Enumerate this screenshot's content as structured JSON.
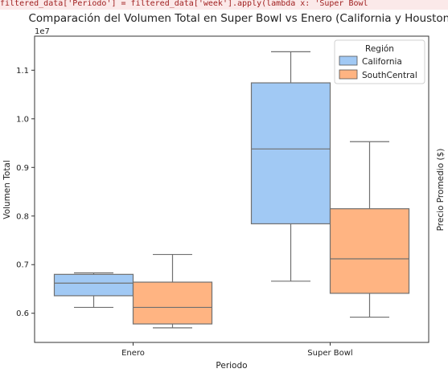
{
  "code_snippet": "filtered_data['Periodo'] = filtered_data['week'].apply(lambda x: 'Super Bowl",
  "chart_data": {
    "type": "box",
    "title": "Comparación del Volumen Total en Super Bowl vs Enero (California y Houston)",
    "xlabel": "Periodo",
    "ylabel": "Volumen Total",
    "y2label": "Precio Promedio ($)",
    "y_scale_label": "1e7",
    "categories": [
      "Enero",
      "Super Bowl"
    ],
    "y_ticks": [
      "0.6",
      "0.7",
      "0.8",
      "0.9",
      "1.0",
      "1.1"
    ],
    "y_tick_values": [
      6000000,
      7000000,
      8000000,
      9000000,
      10000000,
      11000000
    ],
    "ylim": [
      5400000,
      11700000
    ],
    "legend": {
      "title": "Región",
      "position": "top-right"
    },
    "series": [
      {
        "name": "California",
        "color": "#a1c9f4",
        "boxes": [
          {
            "category": "Enero",
            "whisker_low": 6120000,
            "q1": 6360000,
            "median": 6620000,
            "q3": 6800000,
            "whisker_high": 6830000
          },
          {
            "category": "Super Bowl",
            "whisker_low": 6660000,
            "q1": 7840000,
            "median": 9380000,
            "q3": 10740000,
            "whisker_high": 11380000
          }
        ]
      },
      {
        "name": "SouthCentral",
        "color": "#ffb482",
        "boxes": [
          {
            "category": "Enero",
            "whisker_low": 5700000,
            "q1": 5780000,
            "median": 6120000,
            "q3": 6640000,
            "whisker_high": 7210000
          },
          {
            "category": "Super Bowl",
            "whisker_low": 5920000,
            "q1": 6410000,
            "median": 7120000,
            "q3": 8150000,
            "whisker_high": 9530000
          }
        ]
      }
    ]
  }
}
